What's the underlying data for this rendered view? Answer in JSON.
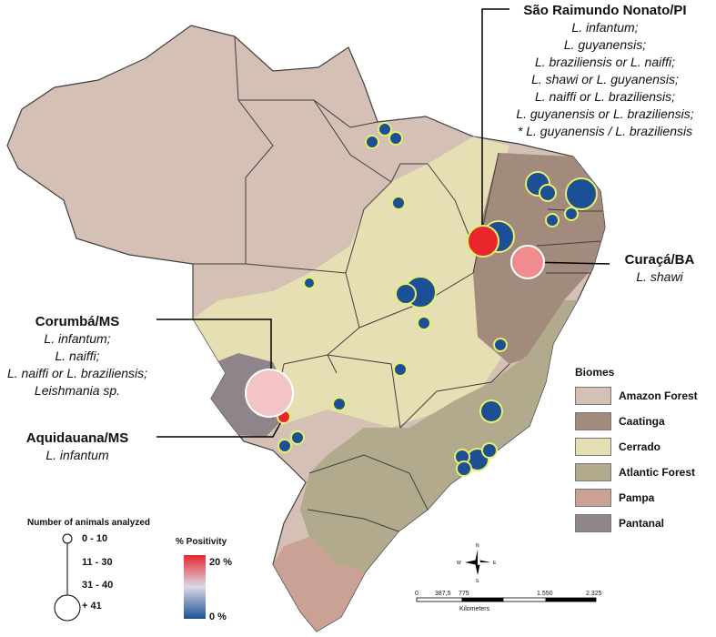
{
  "locations": [
    {
      "name": "São Raimundo Nonato/PI",
      "species": [
        "L. infantum;",
        "L. guyanensis;",
        "L. braziliensis or L. naiffi;",
        "L. shawi  or  L. guyanensis;",
        "L. naiffi or L. braziliensis;",
        "L. guyanensis or L. braziliensis;",
        "* L. guyanensis / L. braziliensis"
      ]
    },
    {
      "name": "Curaçá/BA",
      "species": [
        "L. shawi"
      ]
    },
    {
      "name": "Corumbá/MS",
      "species": [
        "L. infantum;",
        "L. naiffi;",
        "L. naiffi  or L. braziliensis;",
        "Leishmania sp."
      ]
    },
    {
      "name": "Aquidauana/MS",
      "species": [
        "L. infantum"
      ]
    }
  ],
  "legend_biomes": {
    "title": "Biomes",
    "items": [
      {
        "name": "Amazon Forest",
        "color": "#d4c0b4"
      },
      {
        "name": "Caatinga",
        "color": "#a28a7c"
      },
      {
        "name": "Cerrado",
        "color": "#e6dfb3"
      },
      {
        "name": "Atlantic Forest",
        "color": "#b1aa8d"
      },
      {
        "name": "Pampa",
        "color": "#c9a195"
      },
      {
        "name": "Pantanal",
        "color": "#8f8489"
      }
    ]
  },
  "legend_size": {
    "title": "Number of animals analyzed",
    "classes": [
      "0   -  10",
      "11  -  30",
      "31  -  40",
      "+  41"
    ]
  },
  "legend_positivity": {
    "title": "% Positivity",
    "max_label": "20 %",
    "min_label": "0 %",
    "color_high": "#e8262c",
    "color_low": "#1d4f94"
  },
  "scale_bar": {
    "ticks": [
      "0",
      "387,5",
      "775",
      "1.550",
      "2.325"
    ],
    "unit": "Kilometers"
  },
  "compass": {
    "n": "N",
    "s": "S",
    "e": "E",
    "w": "W"
  }
}
